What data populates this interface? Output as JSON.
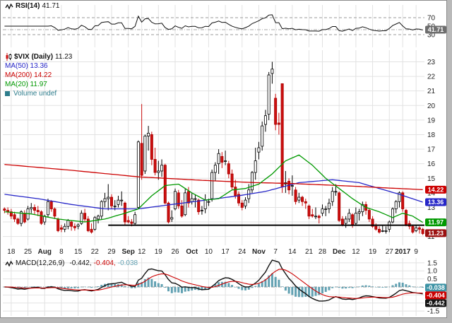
{
  "chart_data": {
    "type": "candlestick",
    "symbol": "$VIX",
    "timeframe": "Daily",
    "colors": {
      "candle_up_fill": "#ffffff",
      "candle_up_stroke": "#000000",
      "candle_down": "#cc0f0f",
      "grid": "#e2e2e2",
      "hist": "#62a1b2",
      "macd_line": "#111111",
      "signal_line": "#cc0000",
      "support_line": "#000000"
    },
    "panels": {
      "rsi": {
        "title": "RSI(14)",
        "value_label": "41.71",
        "value": 41.71,
        "range": [
          0,
          100
        ],
        "ticks": [
          70,
          50,
          30
        ],
        "overbought": 70,
        "oversold": 30,
        "badge_color": "#6e6e6e"
      },
      "price": {
        "title": "$VIX (Daily)",
        "value_label": "11.23",
        "last": 11.23,
        "range": [
          10.4,
          23.8
        ],
        "ticks": [
          23,
          22,
          21,
          20,
          19,
          18,
          17,
          16,
          15,
          14,
          13,
          12,
          11
        ],
        "volume_label": "Volume undef",
        "volume_color": "#2e7d8c",
        "ma": [
          {
            "label": "MA(50) 13.36",
            "period": 50,
            "value": 13.36,
            "color": "#2626c8",
            "keypoints": [
              [
                0,
                13.9
              ],
              [
                10,
                13.6
              ],
              [
                20,
                13.2
              ],
              [
                30,
                12.9
              ],
              [
                40,
                12.9
              ],
              [
                50,
                13.2
              ],
              [
                60,
                13.5
              ],
              [
                70,
                13.8
              ],
              [
                78,
                14.1
              ],
              [
                88,
                14.7
              ],
              [
                98,
                14.9
              ],
              [
                106,
                14.7
              ],
              [
                112,
                14.3
              ],
              [
                118,
                13.9
              ],
              [
                125,
                13.36
              ]
            ]
          },
          {
            "label": "MA(200) 14.22",
            "period": 200,
            "value": 14.22,
            "color": "#cc0000",
            "keypoints": [
              [
                0,
                15.95
              ],
              [
                20,
                15.55
              ],
              [
                40,
                15.1
              ],
              [
                60,
                14.85
              ],
              [
                75,
                14.7
              ],
              [
                85,
                14.65
              ],
              [
                95,
                14.55
              ],
              [
                105,
                14.45
              ],
              [
                115,
                14.33
              ],
              [
                125,
                14.22
              ]
            ]
          },
          {
            "label": "MA(20) 11.97",
            "period": 20,
            "value": 11.97,
            "color": "#009900",
            "keypoints": [
              [
                0,
                12.7
              ],
              [
                8,
                12.55
              ],
              [
                16,
                12.2
              ],
              [
                24,
                12.0
              ],
              [
                30,
                12.2
              ],
              [
                36,
                12.6
              ],
              [
                40,
                12.9
              ],
              [
                44,
                13.8
              ],
              [
                48,
                14.5
              ],
              [
                52,
                14.6
              ],
              [
                56,
                14.0
              ],
              [
                60,
                13.5
              ],
              [
                64,
                13.6
              ],
              [
                68,
                14.2
              ],
              [
                72,
                14.3
              ],
              [
                76,
                14.6
              ],
              [
                80,
                15.3
              ],
              [
                84,
                16.2
              ],
              [
                88,
                16.6
              ],
              [
                92,
                15.9
              ],
              [
                96,
                15.0
              ],
              [
                100,
                14.3
              ],
              [
                104,
                13.6
              ],
              [
                108,
                13.0
              ],
              [
                112,
                12.7
              ],
              [
                116,
                12.3
              ],
              [
                119,
                12.6
              ],
              [
                122,
                12.4
              ],
              [
                125,
                11.97
              ]
            ]
          }
        ],
        "badges": [
          {
            "label": "14.22",
            "value": 14.22,
            "color": "#cc0000"
          },
          {
            "label": "13.36",
            "value": 13.36,
            "color": "#2626c8"
          },
          {
            "label": "11.97",
            "value": 11.97,
            "color": "#009900"
          },
          {
            "label": "11.23",
            "value": 11.23,
            "color": "#9b1010"
          }
        ],
        "support_line": {
          "price": 11.78,
          "from_index": 31,
          "color": "#000000"
        }
      },
      "macd": {
        "title": "MACD(12,26,9)",
        "values_label": [
          "-0.442,",
          "-0.404,",
          "-0.038"
        ],
        "macd": -0.442,
        "signal": -0.404,
        "hist": -0.038,
        "range": [
          -1.8,
          1.8
        ],
        "ticks": [
          1.5,
          1.0,
          0.5,
          -0.5,
          -1.0,
          -1.5
        ],
        "badges": [
          {
            "label": "-0.038",
            "value": -0.038,
            "color": "#3d93a5"
          },
          {
            "label": "-0.404",
            "value": -0.404,
            "color": "#cc0000"
          },
          {
            "label": "-0.442",
            "value": -0.442,
            "color": "#151515"
          }
        ]
      }
    },
    "x_ticks": {
      "indices": [
        2,
        7,
        12,
        17,
        22,
        27,
        32,
        37,
        41,
        46,
        51,
        56,
        61,
        66,
        71,
        76,
        81,
        86,
        91,
        95,
        100,
        105,
        110,
        115,
        119,
        123
      ],
      "labels": [
        "18",
        "25",
        "Aug",
        "8",
        "15",
        "22",
        "29",
        "Sep",
        "12",
        "19",
        "26",
        "Oct",
        "10",
        "17",
        "24",
        "Nov",
        "7",
        "14",
        "21",
        "28",
        "Dec",
        "12",
        "19",
        "27",
        "2017",
        "9"
      ]
    },
    "candles": [
      [
        12.9,
        13.0,
        12.6,
        12.8
      ],
      [
        12.8,
        13.0,
        12.5,
        12.7
      ],
      [
        12.7,
        12.9,
        12.2,
        12.4
      ],
      [
        12.5,
        12.7,
        12.0,
        12.2
      ],
      [
        12.2,
        12.3,
        11.8,
        11.9
      ],
      [
        11.9,
        12.8,
        11.7,
        12.7
      ],
      [
        12.6,
        12.8,
        11.9,
        12.0
      ],
      [
        12.2,
        13.1,
        12.1,
        12.9
      ],
      [
        12.9,
        13.3,
        12.6,
        13.0
      ],
      [
        13.0,
        13.2,
        12.5,
        12.8
      ],
      [
        12.8,
        13.1,
        12.4,
        12.7
      ],
      [
        12.7,
        12.8,
        11.8,
        11.9
      ],
      [
        12.0,
        12.5,
        11.8,
        12.4
      ],
      [
        12.5,
        13.6,
        12.3,
        13.4
      ],
      [
        13.4,
        13.5,
        12.7,
        12.9
      ],
      [
        12.9,
        13.0,
        12.2,
        12.4
      ],
      [
        12.2,
        12.3,
        11.3,
        11.4
      ],
      [
        11.6,
        11.8,
        11.3,
        11.5
      ],
      [
        11.5,
        11.9,
        11.3,
        11.7
      ],
      [
        11.7,
        12.2,
        11.5,
        12.1
      ],
      [
        12.0,
        12.1,
        11.4,
        11.7
      ],
      [
        11.7,
        11.9,
        11.4,
        11.6
      ],
      [
        11.7,
        11.9,
        11.5,
        11.8
      ],
      [
        11.9,
        12.8,
        11.8,
        12.6
      ],
      [
        12.6,
        12.9,
        12.0,
        12.2
      ],
      [
        12.2,
        12.4,
        11.3,
        11.4
      ],
      [
        11.5,
        11.9,
        11.2,
        11.3
      ],
      [
        11.5,
        12.4,
        11.4,
        12.3
      ],
      [
        12.2,
        12.5,
        11.9,
        12.4
      ],
      [
        12.4,
        13.5,
        12.2,
        13.4
      ],
      [
        13.4,
        14.0,
        13.0,
        13.6
      ],
      [
        13.6,
        14.6,
        12.8,
        13.7
      ],
      [
        13.7,
        13.9,
        12.9,
        13.1
      ],
      [
        13.1,
        13.5,
        12.8,
        13.1
      ],
      [
        13.2,
        13.8,
        13.0,
        13.5
      ],
      [
        13.5,
        14.1,
        13.1,
        13.5
      ],
      [
        13.3,
        13.4,
        11.8,
        12.0
      ],
      [
        12.1,
        12.4,
        11.9,
        12.0
      ],
      [
        12.0,
        12.2,
        11.7,
        11.9
      ],
      [
        11.9,
        12.7,
        11.8,
        12.5
      ],
      [
        13.0,
        17.6,
        12.9,
        17.5
      ],
      [
        17.4,
        20.1,
        14.9,
        15.2
      ],
      [
        15.5,
        18.0,
        15.3,
        17.9
      ],
      [
        17.9,
        18.6,
        16.9,
        18.1
      ],
      [
        18.0,
        18.2,
        15.9,
        16.3
      ],
      [
        16.3,
        17.1,
        15.2,
        15.4
      ],
      [
        15.4,
        16.2,
        14.9,
        15.5
      ],
      [
        15.5,
        16.3,
        15.1,
        15.9
      ],
      [
        15.9,
        16.0,
        13.2,
        13.3
      ],
      [
        13.3,
        13.4,
        11.9,
        12.0
      ],
      [
        12.2,
        12.8,
        12.0,
        12.3
      ],
      [
        12.9,
        14.3,
        12.8,
        14.1
      ],
      [
        14.0,
        14.2,
        12.9,
        13.1
      ],
      [
        13.1,
        13.5,
        12.3,
        12.4
      ],
      [
        12.5,
        14.3,
        12.4,
        14.0
      ],
      [
        14.1,
        14.4,
        13.0,
        13.3
      ],
      [
        13.4,
        14.0,
        13.2,
        13.6
      ],
      [
        13.6,
        13.9,
        13.0,
        13.6
      ],
      [
        13.5,
        13.6,
        12.5,
        12.7
      ],
      [
        12.8,
        13.1,
        12.5,
        12.8
      ],
      [
        12.9,
        13.9,
        12.6,
        13.5
      ],
      [
        13.4,
        13.6,
        13.1,
        13.4
      ],
      [
        13.6,
        15.6,
        13.4,
        15.4
      ],
      [
        15.4,
        16.1,
        14.8,
        15.9
      ],
      [
        16.0,
        17.0,
        15.3,
        16.7
      ],
      [
        16.5,
        16.8,
        15.7,
        16.1
      ],
      [
        16.2,
        16.9,
        15.9,
        16.2
      ],
      [
        16.0,
        16.2,
        15.0,
        15.3
      ],
      [
        15.3,
        15.6,
        14.2,
        14.4
      ],
      [
        14.4,
        14.9,
        13.6,
        13.8
      ],
      [
        13.9,
        14.1,
        13.1,
        13.3
      ],
      [
        13.3,
        13.5,
        12.8,
        13.0
      ],
      [
        13.1,
        13.7,
        12.9,
        13.5
      ],
      [
        13.6,
        14.6,
        13.3,
        14.2
      ],
      [
        14.2,
        15.5,
        14.0,
        15.4
      ],
      [
        15.4,
        17.1,
        14.9,
        16.2
      ],
      [
        16.8,
        17.5,
        16.3,
        17.1
      ],
      [
        17.2,
        18.9,
        16.9,
        18.6
      ],
      [
        18.7,
        19.7,
        18.2,
        19.3
      ],
      [
        19.4,
        22.3,
        19.0,
        22.1
      ],
      [
        22.2,
        23.0,
        21.5,
        22.5
      ],
      [
        20.5,
        20.8,
        18.3,
        18.7
      ],
      [
        18.8,
        19.5,
        18.0,
        18.7
      ],
      [
        21.5,
        21.5,
        14.0,
        14.4
      ],
      [
        14.6,
        15.5,
        14.0,
        14.7
      ],
      [
        14.8,
        15.0,
        13.9,
        14.2
      ],
      [
        14.5,
        15.2,
        13.8,
        14.5
      ],
      [
        14.2,
        14.4,
        13.2,
        13.4
      ],
      [
        13.5,
        14.0,
        13.3,
        13.7
      ],
      [
        13.7,
        13.8,
        13.1,
        13.4
      ],
      [
        13.4,
        13.6,
        12.9,
        13.3
      ],
      [
        13.1,
        13.2,
        12.2,
        12.4
      ],
      [
        12.5,
        12.9,
        12.3,
        12.4
      ],
      [
        12.4,
        13.0,
        12.2,
        12.4
      ],
      [
        12.4,
        12.5,
        11.9,
        12.3
      ],
      [
        12.6,
        13.2,
        12.4,
        12.9
      ],
      [
        12.9,
        13.1,
        12.4,
        12.9
      ],
      [
        12.9,
        13.6,
        12.6,
        13.3
      ],
      [
        13.4,
        14.4,
        13.1,
        14.1
      ],
      [
        14.1,
        14.6,
        13.8,
        14.1
      ],
      [
        14.0,
        14.1,
        12.0,
        12.1
      ],
      [
        12.2,
        12.4,
        11.7,
        11.8
      ],
      [
        11.9,
        12.4,
        11.6,
        12.2
      ],
      [
        12.2,
        12.9,
        12.0,
        12.6
      ],
      [
        12.5,
        12.6,
        11.6,
        11.8
      ],
      [
        11.9,
        13.0,
        11.8,
        12.6
      ],
      [
        12.6,
        12.9,
        12.1,
        12.7
      ],
      [
        12.7,
        13.4,
        12.4,
        13.2
      ],
      [
        13.2,
        13.4,
        12.5,
        12.8
      ],
      [
        12.8,
        12.9,
        12.0,
        12.2
      ],
      [
        12.2,
        12.4,
        11.6,
        11.7
      ],
      [
        11.7,
        11.9,
        11.4,
        11.5
      ],
      [
        11.5,
        11.7,
        11.2,
        11.3
      ],
      [
        11.4,
        11.8,
        11.3,
        11.4
      ],
      [
        11.4,
        11.7,
        11.2,
        11.4
      ],
      [
        11.5,
        12.1,
        11.3,
        12.0
      ],
      [
        12.0,
        13.0,
        11.9,
        12.9
      ],
      [
        12.9,
        13.5,
        12.6,
        13.4
      ],
      [
        13.4,
        14.1,
        13.0,
        14.0
      ],
      [
        14.0,
        14.1,
        12.7,
        12.9
      ],
      [
        12.8,
        12.9,
        11.7,
        11.8
      ],
      [
        11.9,
        12.1,
        11.5,
        11.7
      ],
      [
        11.7,
        11.8,
        11.2,
        11.3
      ],
      [
        11.4,
        11.8,
        11.3,
        11.6
      ],
      [
        11.6,
        11.7,
        11.2,
        11.5
      ],
      [
        11.5,
        11.6,
        11.1,
        11.2
      ]
    ]
  }
}
